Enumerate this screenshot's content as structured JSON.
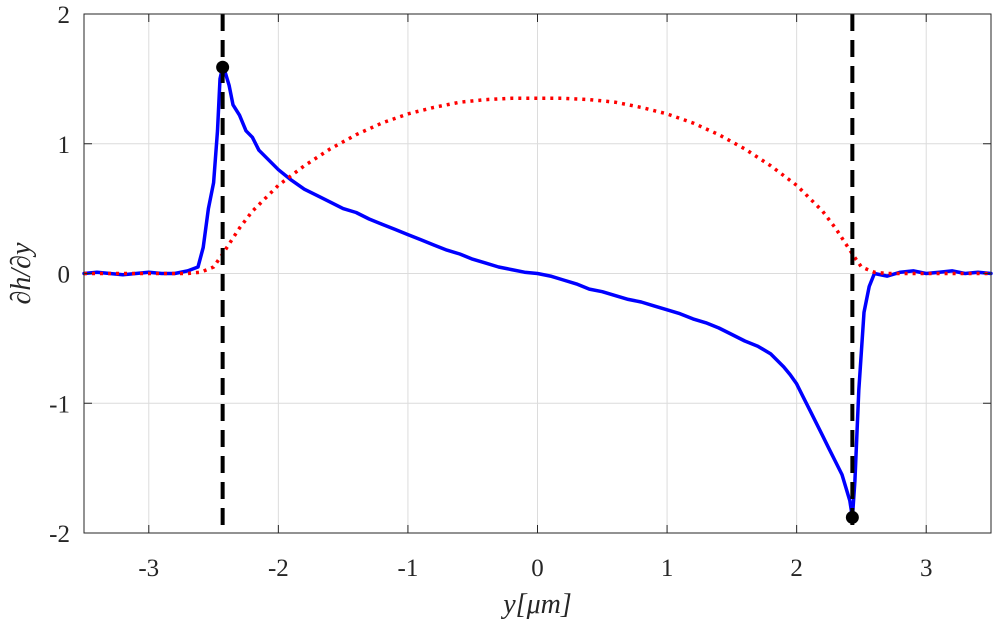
{
  "chart_data": {
    "type": "line",
    "title": "",
    "xlabel": "y[μm]",
    "ylabel": "∂h/∂y",
    "xlim": [
      -3.5,
      3.5
    ],
    "ylim": [
      -2,
      2
    ],
    "xticks": [
      -3,
      -2,
      -1,
      0,
      1,
      2,
      3
    ],
    "yticks": [
      -2,
      -1,
      0,
      1,
      2
    ],
    "xtick_labels": [
      "-3",
      "-2",
      "-1",
      "0",
      "1",
      "2",
      "3"
    ],
    "ytick_labels": [
      "-2",
      "-1",
      "0",
      "1",
      "2"
    ],
    "grid": true,
    "vertical_lines": [
      {
        "x": -2.43,
        "style": "dashed",
        "color": "#000000"
      },
      {
        "x": 2.43,
        "style": "dashed",
        "color": "#000000"
      }
    ],
    "markers": [
      {
        "x": -2.43,
        "y": 1.59,
        "color": "#000000"
      },
      {
        "x": 2.43,
        "y": -1.88,
        "color": "#000000"
      }
    ],
    "series": [
      {
        "style": "solid",
        "color": "#0000ff",
        "x": [
          -3.5,
          -3.4,
          -3.3,
          -3.2,
          -3.1,
          -3.0,
          -2.9,
          -2.8,
          -2.7,
          -2.62,
          -2.58,
          -2.54,
          -2.5,
          -2.47,
          -2.45,
          -2.43,
          -2.41,
          -2.38,
          -2.35,
          -2.3,
          -2.25,
          -2.2,
          -2.15,
          -2.1,
          -2.0,
          -1.9,
          -1.8,
          -1.7,
          -1.6,
          -1.5,
          -1.4,
          -1.3,
          -1.2,
          -1.1,
          -1.0,
          -0.9,
          -0.8,
          -0.7,
          -0.6,
          -0.5,
          -0.4,
          -0.3,
          -0.2,
          -0.1,
          0.0,
          0.1,
          0.2,
          0.3,
          0.4,
          0.5,
          0.6,
          0.7,
          0.8,
          0.9,
          1.0,
          1.1,
          1.2,
          1.3,
          1.4,
          1.5,
          1.6,
          1.7,
          1.8,
          1.85,
          1.9,
          1.95,
          2.0,
          2.05,
          2.1,
          2.15,
          2.2,
          2.25,
          2.3,
          2.35,
          2.38,
          2.41,
          2.43,
          2.45,
          2.48,
          2.52,
          2.56,
          2.6,
          2.7,
          2.8,
          2.9,
          3.0,
          3.1,
          3.2,
          3.3,
          3.4,
          3.5
        ],
        "y": [
          0.0,
          0.01,
          0.0,
          -0.01,
          0.0,
          0.01,
          0.0,
          0.0,
          0.02,
          0.05,
          0.2,
          0.5,
          0.7,
          1.1,
          1.5,
          1.59,
          1.55,
          1.45,
          1.3,
          1.22,
          1.1,
          1.05,
          0.95,
          0.9,
          0.8,
          0.72,
          0.65,
          0.6,
          0.55,
          0.5,
          0.47,
          0.42,
          0.38,
          0.34,
          0.3,
          0.26,
          0.22,
          0.18,
          0.15,
          0.11,
          0.08,
          0.05,
          0.03,
          0.01,
          0.0,
          -0.02,
          -0.05,
          -0.08,
          -0.12,
          -0.14,
          -0.17,
          -0.2,
          -0.22,
          -0.25,
          -0.28,
          -0.31,
          -0.35,
          -0.38,
          -0.42,
          -0.47,
          -0.52,
          -0.56,
          -0.62,
          -0.67,
          -0.72,
          -0.78,
          -0.85,
          -0.95,
          -1.05,
          -1.15,
          -1.25,
          -1.35,
          -1.45,
          -1.55,
          -1.65,
          -1.75,
          -1.88,
          -1.6,
          -0.9,
          -0.3,
          -0.1,
          0.0,
          -0.02,
          0.01,
          0.02,
          0.0,
          0.01,
          0.02,
          0.0,
          0.01,
          0.0
        ]
      },
      {
        "style": "dotted",
        "color": "#ff0000",
        "x": [
          -3.5,
          -3.0,
          -2.7,
          -2.6,
          -2.5,
          -2.43,
          -2.3,
          -2.2,
          -2.1,
          -2.0,
          -1.8,
          -1.6,
          -1.4,
          -1.2,
          -1.0,
          -0.8,
          -0.6,
          -0.4,
          -0.2,
          0.0,
          0.2,
          0.4,
          0.6,
          0.8,
          1.0,
          1.2,
          1.4,
          1.6,
          1.8,
          2.0,
          2.1,
          2.2,
          2.3,
          2.43,
          2.5,
          2.6,
          2.7,
          3.0,
          3.5
        ],
        "y": [
          0.0,
          0.0,
          0.0,
          0.01,
          0.05,
          0.15,
          0.35,
          0.48,
          0.58,
          0.68,
          0.83,
          0.96,
          1.07,
          1.16,
          1.23,
          1.28,
          1.32,
          1.34,
          1.35,
          1.35,
          1.35,
          1.34,
          1.32,
          1.28,
          1.23,
          1.16,
          1.07,
          0.96,
          0.83,
          0.68,
          0.58,
          0.48,
          0.35,
          0.15,
          0.05,
          0.01,
          0.0,
          0.0,
          0.0
        ]
      }
    ]
  }
}
